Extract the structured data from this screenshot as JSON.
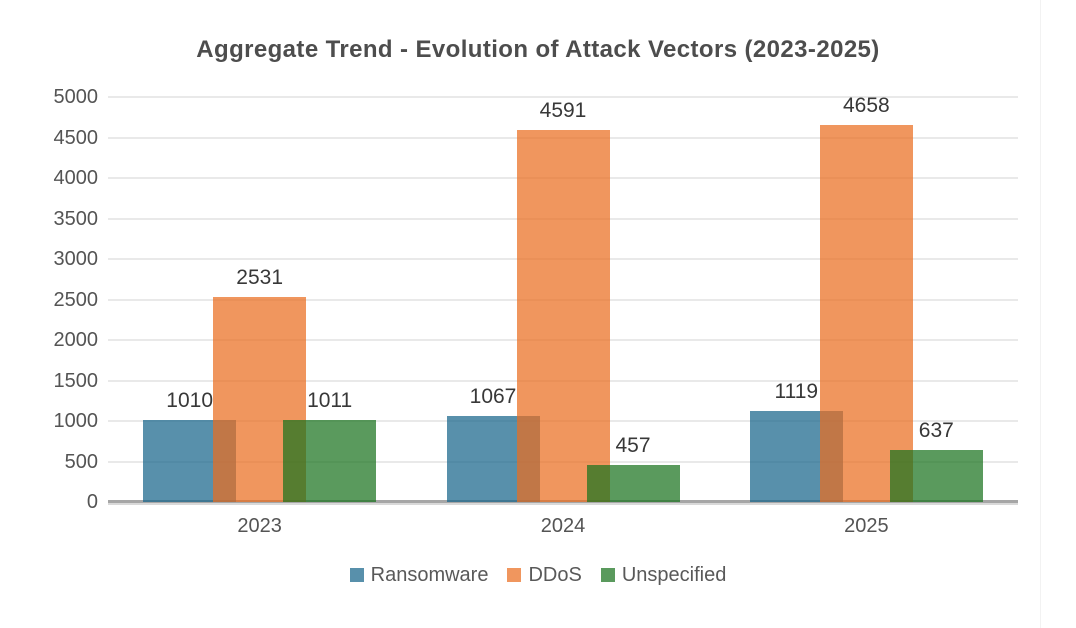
{
  "title": "Aggregate Trend - Evolution of Attack Vectors (2023-2025)",
  "chart_data": {
    "type": "bar",
    "title": "Aggregate Trend - Evolution of Attack Vectors (2023-2025)",
    "categories": [
      "2023",
      "2024",
      "2025"
    ],
    "series": [
      {
        "name": "Ransomware",
        "values": [
          1010,
          1067,
          1119
        ],
        "color": "#17658a"
      },
      {
        "name": "DDoS",
        "values": [
          2531,
          4591,
          4658
        ],
        "color": "#ea6e20"
      },
      {
        "name": "Unspecified",
        "values": [
          1011,
          457,
          637
        ],
        "color": "#1b731f"
      }
    ],
    "bar_opacity": 0.72,
    "ylim": [
      0,
      5000
    ],
    "ytick_step": 500,
    "ytick_labels": [
      "0",
      "500",
      "1000",
      "1500",
      "2000",
      "2500",
      "3000",
      "3500",
      "4000",
      "4500",
      "5000"
    ],
    "grid": true,
    "data_labels": true,
    "legend_position": "bottom",
    "colors": {
      "grid": "#e9e9e9",
      "axis_line": "#a6a6a6",
      "tick_text": "#545454",
      "data_label_text": "#383838",
      "legend_text": "#595959",
      "title_text": "#4d4d4d",
      "background": "#ffffff"
    }
  }
}
